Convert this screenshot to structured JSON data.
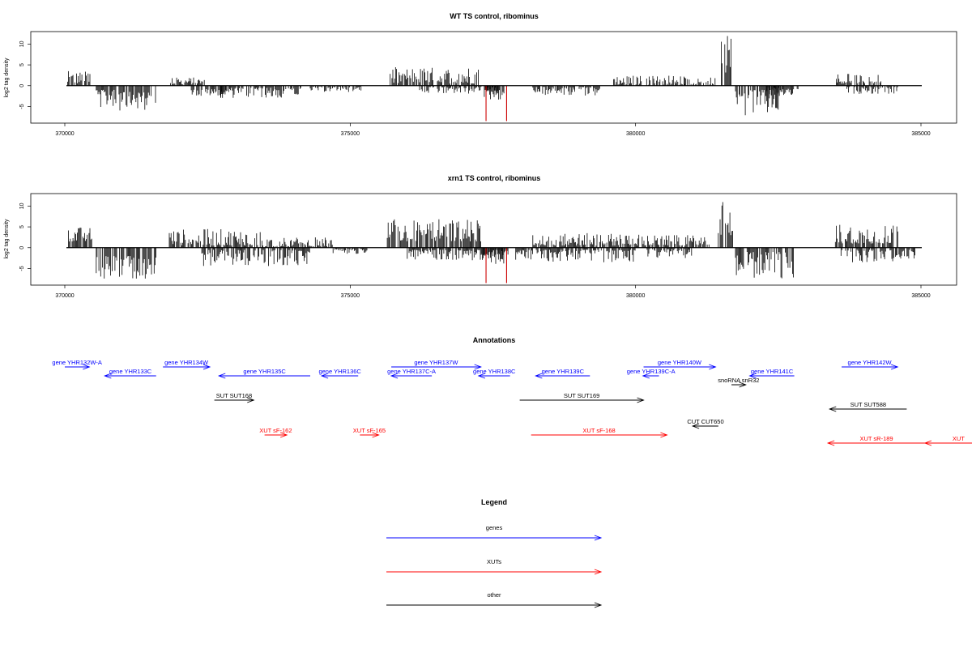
{
  "chart_data": [
    {
      "type": "bar",
      "id": "wt",
      "title": "WT TS control, ribominus",
      "ylabel": "log2 tag density",
      "xlim": [
        370000,
        385000
      ],
      "ylim": [
        -9,
        13
      ],
      "yticks": [
        -5,
        0,
        5,
        10
      ],
      "xticks": [
        370000,
        375000,
        380000,
        385000
      ],
      "bar_color": "#000000",
      "highlight_color": "#cc0000",
      "segments": [
        {
          "start": 370050,
          "end": 370450,
          "strand": "+",
          "min": 0.5,
          "max": 3.5
        },
        {
          "start": 370550,
          "end": 370900,
          "strand": "-",
          "min": 1.0,
          "max": 5.5
        },
        {
          "start": 370950,
          "end": 371600,
          "strand": "-",
          "min": 1.5,
          "max": 6.0
        },
        {
          "start": 371850,
          "end": 372450,
          "strand": "+",
          "min": 0.3,
          "max": 2.0
        },
        {
          "start": 372200,
          "end": 372900,
          "strand": "-",
          "min": 0.8,
          "max": 3.0
        },
        {
          "start": 372700,
          "end": 374150,
          "strand": "-",
          "min": 0.5,
          "max": 3.0
        },
        {
          "start": 374300,
          "end": 375200,
          "strand": "-",
          "min": 0.2,
          "max": 1.5
        },
        {
          "start": 375700,
          "end": 377250,
          "strand": "+",
          "min": 0.5,
          "max": 4.5
        },
        {
          "start": 376200,
          "end": 377600,
          "strand": "-",
          "min": 0.3,
          "max": 2.0
        },
        {
          "start": 377350,
          "end": 377750,
          "strand": "-",
          "min": 1.0,
          "max": 3.5
        },
        {
          "start": 378200,
          "end": 379400,
          "strand": "-",
          "min": 0.3,
          "max": 2.5
        },
        {
          "start": 379600,
          "end": 380900,
          "strand": "+",
          "min": 0.2,
          "max": 2.5
        },
        {
          "start": 380800,
          "end": 381400,
          "strand": "+",
          "min": 0.3,
          "max": 2.0
        },
        {
          "start": 381500,
          "end": 381700,
          "strand": "+",
          "min": 3.0,
          "max": 12.0
        },
        {
          "start": 381750,
          "end": 382550,
          "strand": "-",
          "min": 1.0,
          "max": 7.5
        },
        {
          "start": 382300,
          "end": 382850,
          "strand": "-",
          "min": 0.5,
          "max": 2.5
        },
        {
          "start": 383500,
          "end": 384300,
          "strand": "+",
          "min": 0.5,
          "max": 3.0
        },
        {
          "start": 383700,
          "end": 384600,
          "strand": "-",
          "min": 0.3,
          "max": 2.0
        }
      ],
      "highlights": [
        {
          "x": 377380,
          "value": -8.5
        },
        {
          "x": 377740,
          "value": -8.5
        }
      ]
    },
    {
      "type": "bar",
      "id": "xrn1",
      "title": "xrn1 TS control, ribominus",
      "ylabel": "log2 tag density",
      "xlim": [
        370000,
        385000
      ],
      "ylim": [
        -9,
        13
      ],
      "yticks": [
        -5,
        0,
        5,
        10
      ],
      "xticks": [
        370000,
        375000,
        380000,
        385000
      ],
      "bar_color": "#000000",
      "highlight_color": "#cc0000",
      "segments": [
        {
          "start": 370050,
          "end": 370500,
          "strand": "+",
          "min": 1.5,
          "max": 5.0
        },
        {
          "start": 370550,
          "end": 371600,
          "strand": "-",
          "min": 2.0,
          "max": 8.0
        },
        {
          "start": 371800,
          "end": 373500,
          "strand": "+",
          "min": 0.5,
          "max": 4.5
        },
        {
          "start": 372400,
          "end": 374300,
          "strand": "-",
          "min": 0.5,
          "max": 4.5
        },
        {
          "start": 373500,
          "end": 374700,
          "strand": "+",
          "min": 0.3,
          "max": 2.5
        },
        {
          "start": 374700,
          "end": 375300,
          "strand": "-",
          "min": 0.2,
          "max": 1.5
        },
        {
          "start": 375650,
          "end": 377300,
          "strand": "+",
          "min": 1.5,
          "max": 7.0
        },
        {
          "start": 376000,
          "end": 377800,
          "strand": "-",
          "min": 0.5,
          "max": 3.0
        },
        {
          "start": 377300,
          "end": 377700,
          "strand": "-",
          "min": 1.5,
          "max": 4.0
        },
        {
          "start": 377900,
          "end": 380000,
          "strand": "-",
          "min": 0.5,
          "max": 3.5
        },
        {
          "start": 378200,
          "end": 380100,
          "strand": "+",
          "min": 0.5,
          "max": 3.5
        },
        {
          "start": 380100,
          "end": 381300,
          "strand": "+",
          "min": 0.5,
          "max": 3.0
        },
        {
          "start": 380200,
          "end": 381000,
          "strand": "-",
          "min": 0.3,
          "max": 2.5
        },
        {
          "start": 381450,
          "end": 381700,
          "strand": "+",
          "min": 3.0,
          "max": 11.0
        },
        {
          "start": 381750,
          "end": 382800,
          "strand": "-",
          "min": 1.0,
          "max": 8.0
        },
        {
          "start": 383500,
          "end": 384600,
          "strand": "+",
          "min": 1.0,
          "max": 6.0
        },
        {
          "start": 383600,
          "end": 384900,
          "strand": "-",
          "min": 0.5,
          "max": 3.5
        }
      ],
      "highlights": [
        {
          "x": 377380,
          "value": -8.5
        },
        {
          "x": 377740,
          "value": -8.5
        }
      ]
    }
  ],
  "annotations": {
    "title": "Annotations",
    "xlim": [
      370000,
      385000
    ],
    "items": [
      {
        "label": "gene YHR132W-A",
        "start": 370000,
        "end": 370430,
        "dir": "right",
        "color": "#0000ff",
        "row": 0
      },
      {
        "label": "gene YHR133C",
        "start": 370700,
        "end": 371600,
        "dir": "left",
        "color": "#0000ff",
        "row": 1
      },
      {
        "label": "gene YHR134W",
        "start": 371720,
        "end": 372540,
        "dir": "right",
        "color": "#0000ff",
        "row": 0
      },
      {
        "label": "gene YHR135C",
        "start": 372700,
        "end": 374300,
        "dir": "left",
        "color": "#0000ff",
        "row": 1
      },
      {
        "label": "gene YHR136C",
        "start": 374500,
        "end": 375140,
        "dir": "left",
        "color": "#0000ff",
        "row": 1
      },
      {
        "label": "gene YHR137W",
        "start": 375720,
        "end": 377290,
        "dir": "right",
        "color": "#0000ff",
        "row": 0
      },
      {
        "label": "gene YHR137C-A",
        "start": 375720,
        "end": 376430,
        "dir": "left",
        "color": "#0000ff",
        "row": 1
      },
      {
        "label": "gene YHR138C",
        "start": 377250,
        "end": 377800,
        "dir": "left",
        "color": "#0000ff",
        "row": 1
      },
      {
        "label": "gene YHR139C",
        "start": 378250,
        "end": 379200,
        "dir": "left",
        "color": "#0000ff",
        "row": 1
      },
      {
        "label": "gene YHR139C-A",
        "start": 380130,
        "end": 380410,
        "dir": "left",
        "color": "#0000ff",
        "row": 1
      },
      {
        "label": "gene YHR140W",
        "start": 380140,
        "end": 381400,
        "dir": "right",
        "color": "#0000ff",
        "row": 0
      },
      {
        "label": "gene YHR141C",
        "start": 382000,
        "end": 382780,
        "dir": "left",
        "color": "#0000ff",
        "row": 1
      },
      {
        "label": "gene YHR142W",
        "start": 383610,
        "end": 384590,
        "dir": "right",
        "color": "#0000ff",
        "row": 0
      },
      {
        "label": "snoRNA snR32",
        "start": 381680,
        "end": 381930,
        "dir": "right",
        "color": "#000000",
        "row": 2
      },
      {
        "label": "SUT SUT168",
        "start": 372620,
        "end": 373310,
        "dir": "right",
        "color": "#000000",
        "row": 3
      },
      {
        "label": "SUT SUT169",
        "start": 377970,
        "end": 380140,
        "dir": "right",
        "color": "#000000",
        "row": 3
      },
      {
        "label": "SUT SUT588",
        "start": 383400,
        "end": 384750,
        "dir": "left",
        "color": "#000000",
        "row": 4
      },
      {
        "label": "CUT CUT650",
        "start": 381000,
        "end": 381450,
        "dir": "left",
        "color": "#000000",
        "row": 5
      },
      {
        "label": "XUT sF-162",
        "start": 373500,
        "end": 373890,
        "dir": "right",
        "color": "#ff0000",
        "row": 6
      },
      {
        "label": "XUT sF-165",
        "start": 375170,
        "end": 375500,
        "dir": "right",
        "color": "#ff0000",
        "row": 6
      },
      {
        "label": "XUT sF-168",
        "start": 378170,
        "end": 380550,
        "dir": "right",
        "color": "#ff0000",
        "row": 6
      },
      {
        "label": "XUT sR-189",
        "start": 383370,
        "end": 385070,
        "dir": "left",
        "color": "#ff0000",
        "row": 7
      },
      {
        "label": "XUT",
        "start": 385070,
        "end": 386000,
        "dir": "left",
        "color": "#ff0000",
        "row": 7
      }
    ]
  },
  "legend": {
    "title": "Legend",
    "entries": [
      {
        "label": "genes",
        "color": "#0000ff"
      },
      {
        "label": "XUTs",
        "color": "#ff0000"
      },
      {
        "label": "other",
        "color": "#000000"
      }
    ]
  }
}
